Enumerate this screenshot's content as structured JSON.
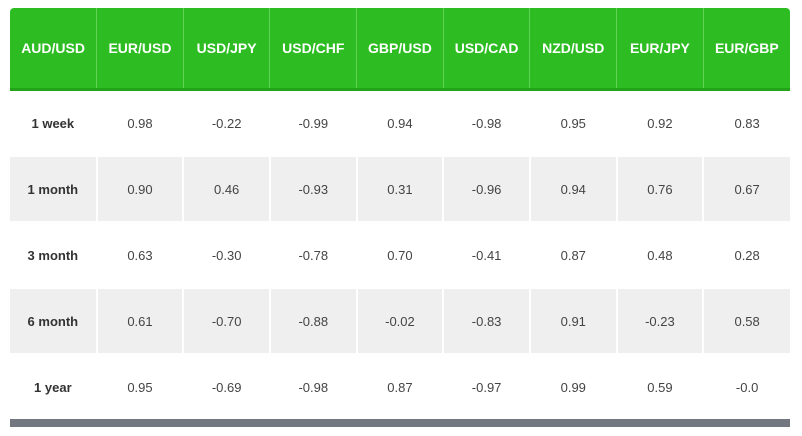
{
  "table": {
    "header": [
      "AUD/USD",
      "EUR/USD",
      "USD/JPY",
      "USD/CHF",
      "GBP/USD",
      "USD/CAD",
      "NZD/USD",
      "EUR/JPY",
      "EUR/GBP"
    ],
    "rows": [
      [
        "1 week",
        "0.98",
        "-0.22",
        "-0.99",
        "0.94",
        "-0.98",
        "0.95",
        "0.92",
        "0.83"
      ],
      [
        "1 month",
        "0.90",
        "0.46",
        "-0.93",
        "0.31",
        "-0.96",
        "0.94",
        "0.76",
        "0.67"
      ],
      [
        "3 month",
        "0.63",
        "-0.30",
        "-0.78",
        "0.70",
        "-0.41",
        "0.87",
        "0.48",
        "0.28"
      ],
      [
        "6 month",
        "0.61",
        "-0.70",
        "-0.88",
        "-0.02",
        "-0.83",
        "0.91",
        "-0.23",
        "0.58"
      ],
      [
        "1 year",
        "0.95",
        "-0.69",
        "-0.98",
        "0.87",
        "-0.97",
        "0.99",
        "0.59",
        "-0.0"
      ]
    ]
  }
}
